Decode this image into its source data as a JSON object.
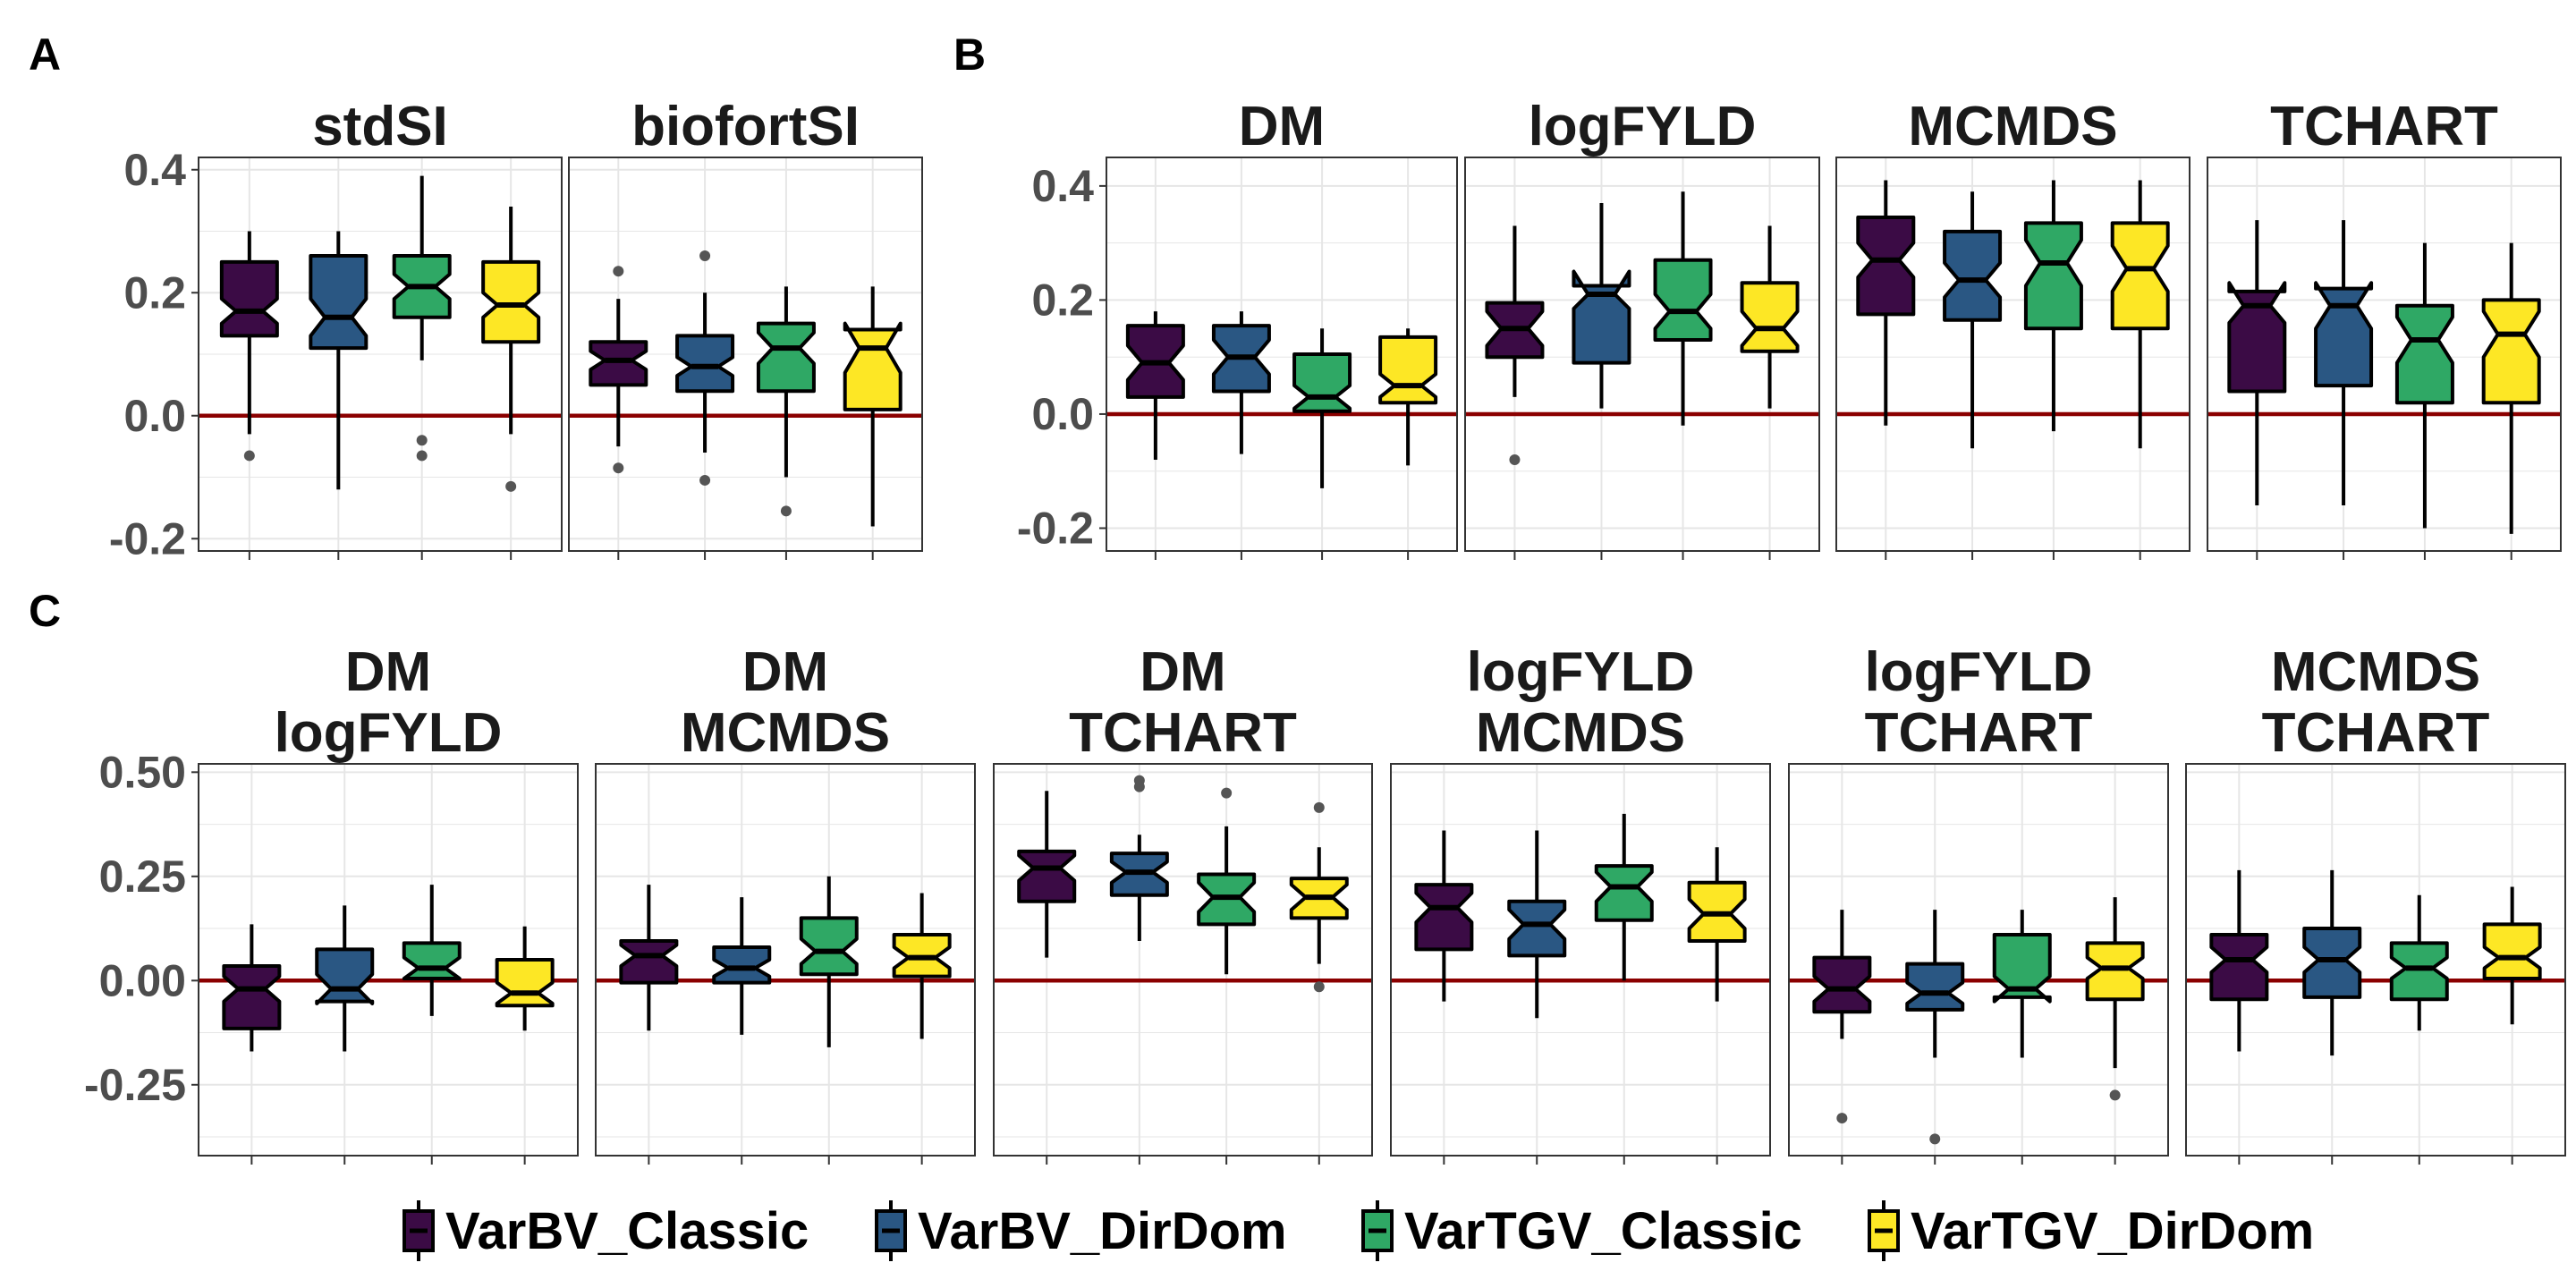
{
  "chart_data": [
    {
      "panel": "A",
      "type": "boxplot",
      "ylim": [
        -0.22,
        0.42
      ],
      "yticks": [
        -0.2,
        0.0,
        0.2,
        0.4
      ],
      "ytick_labels": [
        "-0.2",
        "0.0",
        "0.2",
        "0.4"
      ],
      "reference_line": 0,
      "facets": [
        {
          "title_lines": [
            "stdSI"
          ],
          "boxes": [
            {
              "group": "VarBV_Classic",
              "min": -0.03,
              "q1": 0.13,
              "median": 0.17,
              "q3": 0.25,
              "max": 0.3,
              "notch": [
                0.15,
                0.19
              ],
              "outliers": [
                -0.065
              ]
            },
            {
              "group": "VarBV_DirDom",
              "min": -0.12,
              "q1": 0.11,
              "median": 0.16,
              "q3": 0.26,
              "max": 0.3,
              "notch": [
                0.13,
                0.19
              ],
              "outliers": []
            },
            {
              "group": "VarTGV_Classic",
              "min": 0.09,
              "q1": 0.16,
              "median": 0.21,
              "q3": 0.26,
              "max": 0.39,
              "notch": [
                0.19,
                0.23
              ],
              "outliers": [
                -0.04,
                -0.065
              ]
            },
            {
              "group": "VarTGV_DirDom",
              "min": -0.03,
              "q1": 0.12,
              "median": 0.18,
              "q3": 0.25,
              "max": 0.34,
              "notch": [
                0.16,
                0.2
              ],
              "outliers": [
                -0.115
              ]
            }
          ]
        },
        {
          "title_lines": [
            "biofortSI"
          ],
          "boxes": [
            {
              "group": "VarBV_Classic",
              "min": -0.05,
              "q1": 0.05,
              "median": 0.09,
              "q3": 0.12,
              "max": 0.19,
              "notch": [
                0.075,
                0.105
              ],
              "outliers": [
                0.235,
                -0.085
              ]
            },
            {
              "group": "VarBV_DirDom",
              "min": -0.06,
              "q1": 0.04,
              "median": 0.08,
              "q3": 0.13,
              "max": 0.2,
              "notch": [
                0.065,
                0.095
              ],
              "outliers": [
                0.26,
                -0.105
              ]
            },
            {
              "group": "VarTGV_Classic",
              "min": -0.1,
              "q1": 0.04,
              "median": 0.11,
              "q3": 0.15,
              "max": 0.21,
              "notch": [
                0.085,
                0.135
              ],
              "outliers": [
                -0.155
              ]
            },
            {
              "group": "VarTGV_DirDom",
              "min": -0.18,
              "q1": 0.01,
              "median": 0.11,
              "q3": 0.14,
              "max": 0.21,
              "notch": [
                0.07,
                0.15
              ],
              "outliers": []
            }
          ]
        }
      ]
    },
    {
      "panel": "B",
      "type": "boxplot",
      "ylim": [
        -0.24,
        0.45
      ],
      "yticks": [
        -0.2,
        0.0,
        0.2,
        0.4
      ],
      "ytick_labels": [
        "-0.2",
        "0.0",
        "0.2",
        "0.4"
      ],
      "reference_line": 0,
      "facets": [
        {
          "title_lines": [
            "DM"
          ],
          "boxes": [
            {
              "group": "VarBV_Classic",
              "min": -0.08,
              "q1": 0.03,
              "median": 0.09,
              "q3": 0.155,
              "max": 0.18,
              "notch": [
                0.06,
                0.12
              ],
              "outliers": []
            },
            {
              "group": "VarBV_DirDom",
              "min": -0.07,
              "q1": 0.04,
              "median": 0.1,
              "q3": 0.155,
              "max": 0.18,
              "notch": [
                0.07,
                0.13
              ],
              "outliers": []
            },
            {
              "group": "VarTGV_Classic",
              "min": -0.13,
              "q1": 0.005,
              "median": 0.03,
              "q3": 0.105,
              "max": 0.15,
              "notch": [
                0.01,
                0.05
              ],
              "outliers": []
            },
            {
              "group": "VarTGV_DirDom",
              "min": -0.09,
              "q1": 0.02,
              "median": 0.05,
              "q3": 0.135,
              "max": 0.15,
              "notch": [
                0.03,
                0.07
              ],
              "outliers": []
            }
          ]
        },
        {
          "title_lines": [
            "logFYLD"
          ],
          "boxes": [
            {
              "group": "VarBV_Classic",
              "min": 0.03,
              "q1": 0.1,
              "median": 0.15,
              "q3": 0.195,
              "max": 0.33,
              "notch": [
                0.12,
                0.18
              ],
              "outliers": [
                -0.08
              ]
            },
            {
              "group": "VarBV_DirDom",
              "min": 0.01,
              "q1": 0.09,
              "median": 0.21,
              "q3": 0.225,
              "max": 0.37,
              "notch": [
                0.185,
                0.25
              ],
              "outliers": []
            },
            {
              "group": "VarTGV_Classic",
              "min": -0.02,
              "q1": 0.13,
              "median": 0.18,
              "q3": 0.27,
              "max": 0.39,
              "notch": [
                0.15,
                0.21
              ],
              "outliers": []
            },
            {
              "group": "VarTGV_DirDom",
              "min": 0.01,
              "q1": 0.11,
              "median": 0.15,
              "q3": 0.23,
              "max": 0.33,
              "notch": [
                0.12,
                0.18
              ],
              "outliers": []
            }
          ]
        },
        {
          "title_lines": [
            "MCMDS"
          ],
          "boxes": [
            {
              "group": "VarBV_Classic",
              "min": -0.02,
              "q1": 0.175,
              "median": 0.27,
              "q3": 0.345,
              "max": 0.41,
              "notch": [
                0.24,
                0.3
              ],
              "outliers": []
            },
            {
              "group": "VarBV_DirDom",
              "min": -0.06,
              "q1": 0.165,
              "median": 0.235,
              "q3": 0.32,
              "max": 0.39,
              "notch": [
                0.205,
                0.265
              ],
              "outliers": []
            },
            {
              "group": "VarTGV_Classic",
              "min": -0.03,
              "q1": 0.15,
              "median": 0.265,
              "q3": 0.335,
              "max": 0.41,
              "notch": [
                0.225,
                0.305
              ],
              "outliers": []
            },
            {
              "group": "VarTGV_DirDom",
              "min": -0.06,
              "q1": 0.15,
              "median": 0.255,
              "q3": 0.335,
              "max": 0.41,
              "notch": [
                0.215,
                0.295
              ],
              "outliers": []
            }
          ]
        },
        {
          "title_lines": [
            "TCHART"
          ],
          "boxes": [
            {
              "group": "VarBV_Classic",
              "min": -0.16,
              "q1": 0.04,
              "median": 0.19,
              "q3": 0.215,
              "max": 0.34,
              "notch": [
                0.16,
                0.23
              ],
              "outliers": []
            },
            {
              "group": "VarBV_DirDom",
              "min": -0.16,
              "q1": 0.05,
              "median": 0.19,
              "q3": 0.22,
              "max": 0.34,
              "notch": [
                0.15,
                0.23
              ],
              "outliers": []
            },
            {
              "group": "VarTGV_Classic",
              "min": -0.2,
              "q1": 0.02,
              "median": 0.13,
              "q3": 0.19,
              "max": 0.3,
              "notch": [
                0.09,
                0.17
              ],
              "outliers": []
            },
            {
              "group": "VarTGV_DirDom",
              "min": -0.21,
              "q1": 0.02,
              "median": 0.14,
              "q3": 0.2,
              "max": 0.3,
              "notch": [
                0.1,
                0.18
              ],
              "outliers": []
            }
          ]
        }
      ]
    },
    {
      "panel": "C",
      "type": "boxplot",
      "ylim": [
        -0.42,
        0.52
      ],
      "yticks": [
        -0.25,
        0.0,
        0.25,
        0.5
      ],
      "ytick_labels": [
        "-0.25",
        "0.00",
        "0.25",
        "0.50"
      ],
      "reference_line": 0,
      "facets": [
        {
          "title_lines": [
            "DM",
            "logFYLD"
          ],
          "boxes": [
            {
              "group": "VarBV_Classic",
              "min": -0.17,
              "q1": -0.115,
              "median": -0.02,
              "q3": 0.035,
              "max": 0.135,
              "notch": [
                -0.05,
                0.01
              ],
              "outliers": []
            },
            {
              "group": "VarBV_DirDom",
              "min": -0.17,
              "q1": -0.05,
              "median": -0.02,
              "q3": 0.075,
              "max": 0.18,
              "notch": [
                -0.055,
                0.015
              ],
              "outliers": []
            },
            {
              "group": "VarTGV_Classic",
              "min": -0.085,
              "q1": 0.005,
              "median": 0.03,
              "q3": 0.09,
              "max": 0.23,
              "notch": [
                0.005,
                0.055
              ],
              "outliers": []
            },
            {
              "group": "VarTGV_DirDom",
              "min": -0.12,
              "q1": -0.06,
              "median": -0.03,
              "q3": 0.05,
              "max": 0.13,
              "notch": [
                -0.055,
                -0.005
              ],
              "outliers": []
            }
          ]
        },
        {
          "title_lines": [
            "DM",
            "MCMDS"
          ],
          "boxes": [
            {
              "group": "VarBV_Classic",
              "min": -0.12,
              "q1": -0.005,
              "median": 0.06,
              "q3": 0.095,
              "max": 0.23,
              "notch": [
                0.035,
                0.085
              ],
              "outliers": []
            },
            {
              "group": "VarBV_DirDom",
              "min": -0.13,
              "q1": -0.005,
              "median": 0.03,
              "q3": 0.08,
              "max": 0.2,
              "notch": [
                0.01,
                0.05
              ],
              "outliers": []
            },
            {
              "group": "VarTGV_Classic",
              "min": -0.16,
              "q1": 0.015,
              "median": 0.07,
              "q3": 0.15,
              "max": 0.25,
              "notch": [
                0.04,
                0.1
              ],
              "outliers": []
            },
            {
              "group": "VarTGV_DirDom",
              "min": -0.14,
              "q1": 0.01,
              "median": 0.055,
              "q3": 0.11,
              "max": 0.21,
              "notch": [
                0.03,
                0.08
              ],
              "outliers": []
            }
          ]
        },
        {
          "title_lines": [
            "DM",
            "TCHART"
          ],
          "boxes": [
            {
              "group": "VarBV_Classic",
              "min": 0.055,
              "q1": 0.19,
              "median": 0.27,
              "q3": 0.31,
              "max": 0.455,
              "notch": [
                0.24,
                0.3
              ],
              "outliers": []
            },
            {
              "group": "VarBV_DirDom",
              "min": 0.095,
              "q1": 0.205,
              "median": 0.26,
              "q3": 0.305,
              "max": 0.35,
              "notch": [
                0.235,
                0.285
              ],
              "outliers": [
                0.48,
                0.465
              ]
            },
            {
              "group": "VarTGV_Classic",
              "min": 0.015,
              "q1": 0.135,
              "median": 0.2,
              "q3": 0.255,
              "max": 0.37,
              "notch": [
                0.165,
                0.235
              ],
              "outliers": [
                0.45
              ]
            },
            {
              "group": "VarTGV_DirDom",
              "min": 0.04,
              "q1": 0.15,
              "median": 0.2,
              "q3": 0.245,
              "max": 0.32,
              "notch": [
                0.17,
                0.23
              ],
              "outliers": [
                0.415,
                -0.015
              ]
            }
          ]
        },
        {
          "title_lines": [
            "logFYLD",
            "MCMDS"
          ],
          "boxes": [
            {
              "group": "VarBV_Classic",
              "min": -0.05,
              "q1": 0.075,
              "median": 0.175,
              "q3": 0.23,
              "max": 0.36,
              "notch": [
                0.14,
                0.21
              ],
              "outliers": []
            },
            {
              "group": "VarBV_DirDom",
              "min": -0.09,
              "q1": 0.06,
              "median": 0.135,
              "q3": 0.19,
              "max": 0.36,
              "notch": [
                0.1,
                0.17
              ],
              "outliers": []
            },
            {
              "group": "VarTGV_Classic",
              "min": 0.0,
              "q1": 0.145,
              "median": 0.225,
              "q3": 0.275,
              "max": 0.4,
              "notch": [
                0.19,
                0.26
              ],
              "outliers": []
            },
            {
              "group": "VarTGV_DirDom",
              "min": -0.05,
              "q1": 0.095,
              "median": 0.16,
              "q3": 0.235,
              "max": 0.32,
              "notch": [
                0.125,
                0.195
              ],
              "outliers": []
            }
          ]
        },
        {
          "title_lines": [
            "logFYLD",
            "TCHART"
          ],
          "boxes": [
            {
              "group": "VarBV_Classic",
              "min": -0.14,
              "q1": -0.075,
              "median": -0.02,
              "q3": 0.055,
              "max": 0.17,
              "notch": [
                -0.05,
                0.01
              ],
              "outliers": [
                -0.33
              ]
            },
            {
              "group": "VarBV_DirDom",
              "min": -0.185,
              "q1": -0.07,
              "median": -0.03,
              "q3": 0.04,
              "max": 0.17,
              "notch": [
                -0.055,
                -0.005
              ],
              "outliers": [
                -0.38
              ]
            },
            {
              "group": "VarTGV_Classic",
              "min": -0.185,
              "q1": -0.04,
              "median": -0.02,
              "q3": 0.11,
              "max": 0.17,
              "notch": [
                -0.05,
                0.01
              ],
              "outliers": []
            },
            {
              "group": "VarTGV_DirDom",
              "min": -0.21,
              "q1": -0.045,
              "median": 0.03,
              "q3": 0.09,
              "max": 0.2,
              "notch": [
                0.005,
                0.055
              ],
              "outliers": [
                -0.275
              ]
            }
          ]
        },
        {
          "title_lines": [
            "MCMDS",
            "TCHART"
          ],
          "boxes": [
            {
              "group": "VarBV_Classic",
              "min": -0.17,
              "q1": -0.045,
              "median": 0.05,
              "q3": 0.11,
              "max": 0.265,
              "notch": [
                0.02,
                0.08
              ],
              "outliers": []
            },
            {
              "group": "VarBV_DirDom",
              "min": -0.18,
              "q1": -0.04,
              "median": 0.05,
              "q3": 0.125,
              "max": 0.265,
              "notch": [
                0.02,
                0.08
              ],
              "outliers": []
            },
            {
              "group": "VarTGV_Classic",
              "min": -0.12,
              "q1": -0.045,
              "median": 0.03,
              "q3": 0.09,
              "max": 0.205,
              "notch": [
                0.005,
                0.055
              ],
              "outliers": []
            },
            {
              "group": "VarTGV_DirDom",
              "min": -0.105,
              "q1": 0.005,
              "median": 0.055,
              "q3": 0.135,
              "max": 0.225,
              "notch": [
                0.03,
                0.08
              ],
              "outliers": []
            }
          ]
        }
      ]
    }
  ],
  "legend": {
    "entries": [
      {
        "label": "VarBV_Classic",
        "color": "#3b0b45"
      },
      {
        "label": "VarBV_DirDom",
        "color": "#2a5783"
      },
      {
        "label": "VarTGV_Classic",
        "color": "#2fa865"
      },
      {
        "label": "VarTGV_DirDom",
        "color": "#fde725"
      }
    ]
  },
  "colors": {
    "reference_line": "#8b0000",
    "outlier": "#555555",
    "grid": "#e6e6e6",
    "panel_border": "#333333"
  }
}
